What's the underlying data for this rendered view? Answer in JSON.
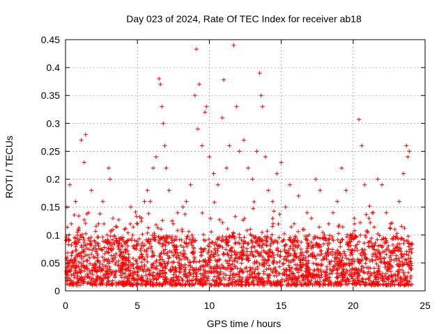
{
  "chart_data": {
    "type": "scatter",
    "title": "Day 023 of 2024, Rate Of TEC Index for receiver ab18",
    "xlabel": "GPS time / hours",
    "ylabel": "ROTI / TECUs",
    "xlim": [
      0,
      25
    ],
    "ylim": [
      0,
      0.45
    ],
    "xticks": [
      0,
      5,
      10,
      15,
      20,
      25
    ],
    "yticks": [
      0,
      0.05,
      0.1,
      0.15,
      0.2,
      0.25,
      0.3,
      0.35,
      0.4,
      0.45
    ],
    "grid": true,
    "legend": "none",
    "marker": "+",
    "series": [
      {
        "color": "#ff0000",
        "x": [
          0.1,
          0.2,
          0.3,
          0.4,
          0.5,
          0.7,
          0.9,
          1.1,
          1.3,
          1.4,
          1.6,
          1.8,
          2.0,
          2.3,
          2.6,
          2.9,
          3.0,
          3.1,
          3.3,
          3.5,
          3.8,
          4.1,
          4.4,
          4.7,
          5.0,
          5.3,
          5.5,
          5.7,
          5.9,
          6.1,
          6.3,
          6.5,
          6.6,
          6.7,
          6.8,
          6.9,
          7.0,
          7.2,
          7.5,
          7.8,
          8.1,
          8.4,
          8.7,
          9.0,
          9.1,
          9.2,
          9.3,
          9.5,
          9.7,
          9.8,
          10.0,
          10.3,
          10.6,
          10.9,
          11.0,
          11.2,
          11.4,
          11.7,
          11.9,
          12.1,
          12.4,
          12.7,
          13.0,
          13.3,
          13.5,
          13.6,
          13.7,
          13.9,
          14.1,
          14.4,
          14.7,
          15.0,
          15.3,
          15.6,
          15.9,
          16.2,
          16.5,
          16.8,
          17.1,
          17.4,
          17.7,
          18.0,
          18.3,
          18.6,
          18.9,
          19.2,
          19.5,
          19.8,
          20.1,
          20.4,
          20.6,
          20.8,
          21.1,
          21.4,
          21.7,
          22.0,
          22.3,
          22.6,
          22.9,
          23.2,
          23.5,
          23.7,
          23.8,
          23.9
        ],
        "y": [
          0.15,
          0.09,
          0.19,
          0.12,
          0.07,
          0.16,
          0.11,
          0.27,
          0.23,
          0.28,
          0.14,
          0.18,
          0.09,
          0.12,
          0.16,
          0.1,
          0.22,
          0.2,
          0.13,
          0.09,
          0.07,
          0.11,
          0.06,
          0.08,
          0.12,
          0.13,
          0.16,
          0.18,
          0.16,
          0.22,
          0.24,
          0.38,
          0.37,
          0.33,
          0.3,
          0.26,
          0.22,
          0.18,
          0.12,
          0.14,
          0.11,
          0.16,
          0.19,
          0.35,
          0.433,
          0.29,
          0.37,
          0.26,
          0.32,
          0.33,
          0.24,
          0.21,
          0.19,
          0.31,
          0.378,
          0.22,
          0.26,
          0.44,
          0.33,
          0.25,
          0.27,
          0.22,
          0.2,
          0.25,
          0.39,
          0.35,
          0.33,
          0.24,
          0.18,
          0.16,
          0.21,
          0.23,
          0.15,
          0.19,
          0.12,
          0.17,
          0.11,
          0.14,
          0.13,
          0.2,
          0.18,
          0.1,
          0.12,
          0.14,
          0.16,
          0.22,
          0.18,
          0.1,
          0.12,
          0.307,
          0.26,
          0.19,
          0.13,
          0.14,
          0.2,
          0.19,
          0.14,
          0.12,
          0.11,
          0.16,
          0.21,
          0.26,
          0.24,
          0.25
        ]
      }
    ],
    "background_density": {
      "description": "dense band of points across all hours",
      "typical_range": [
        0.01,
        0.1
      ]
    }
  }
}
